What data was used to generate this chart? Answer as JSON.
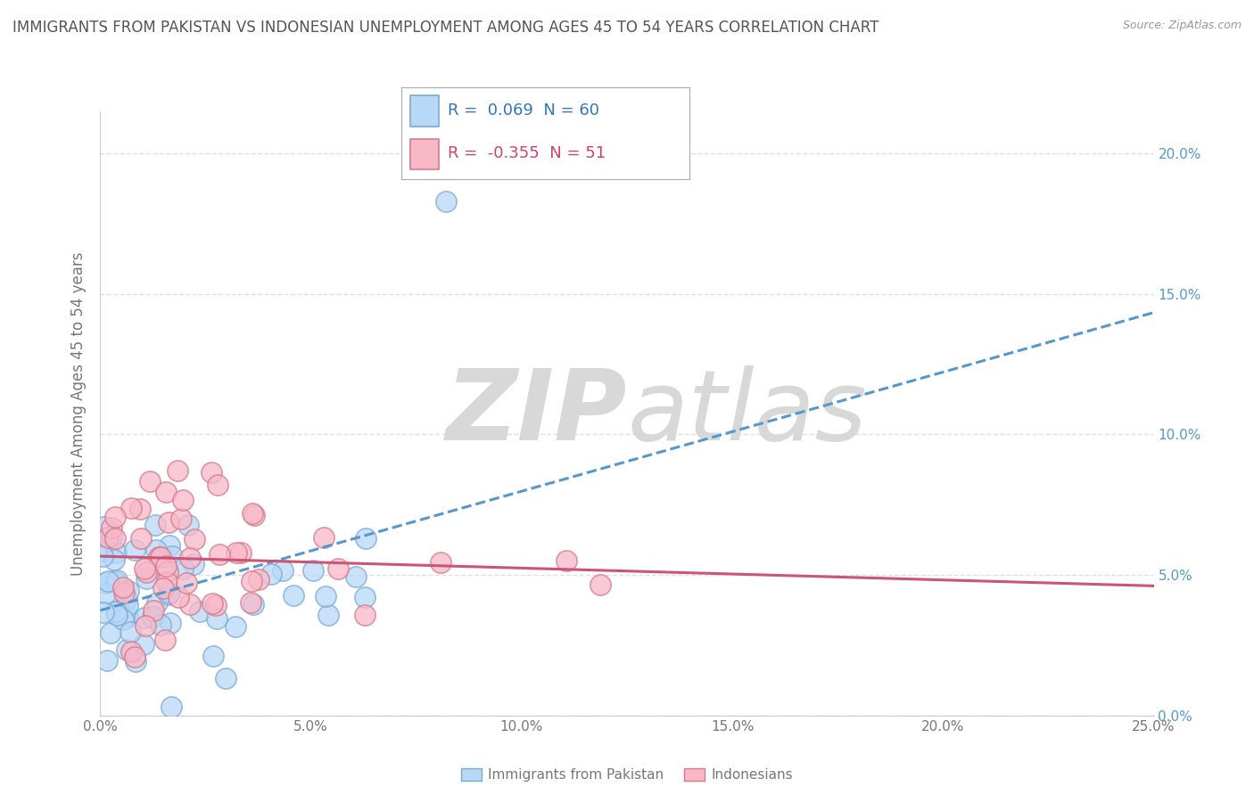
{
  "title": "IMMIGRANTS FROM PAKISTAN VS INDONESIAN UNEMPLOYMENT AMONG AGES 45 TO 54 YEARS CORRELATION CHART",
  "source": "Source: ZipAtlas.com",
  "ylabel": "Unemployment Among Ages 45 to 54 years",
  "series1_label": "Immigrants from Pakistan",
  "series1_R": "0.069",
  "series1_N": "60",
  "series1_color": "#b8d8f8",
  "series1_edge": "#7aaad4",
  "series2_label": "Indonesians",
  "series2_R": "-0.355",
  "series2_N": "51",
  "series2_color": "#f8b8c8",
  "series2_edge": "#d47a8a",
  "trendline1_color": "#5599cc",
  "trendline2_color": "#cc5577",
  "watermark_zip": "ZIP",
  "watermark_atlas": "atlas",
  "watermark_color": "#d8d8d8",
  "background_color": "#ffffff",
  "grid_color": "#e0e0e0",
  "title_color": "#555555",
  "axis_label_color": "#777777",
  "right_tick_color": "#5599cc",
  "xlim": [
    0.0,
    0.25
  ],
  "ylim": [
    0.0,
    0.215
  ],
  "ytick_vals": [
    0.0,
    0.05,
    0.1,
    0.15,
    0.2
  ],
  "xtick_vals": [
    0.0,
    0.05,
    0.1,
    0.15,
    0.2,
    0.25
  ],
  "seed1": 42,
  "seed2": 123
}
